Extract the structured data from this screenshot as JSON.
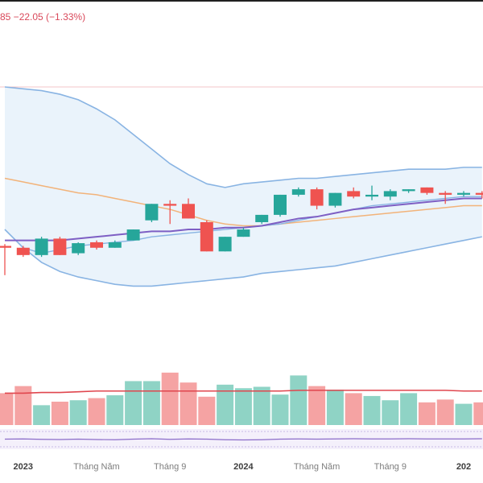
{
  "header": {
    "change_text": "85  −22.05 (−1.33%)"
  },
  "colors": {
    "up": "#26a69a",
    "down": "#ef5350",
    "up_volume": "#8fd3c5",
    "down_volume": "#f5a3a3",
    "band_line": "#89b4e3",
    "band_fill": "#eaf3fb",
    "ma_orange": "#f2b37a",
    "ma_purple": "#7e5fc4",
    "volume_ma": "#e0464e",
    "oscillator": "#8b6cc9",
    "reference_line": "#f3c4c8"
  },
  "chart_data": {
    "type": "candlestick",
    "title": "",
    "xlabel": "",
    "ylabel": "",
    "x_ticks": [
      {
        "label": "2023",
        "index": 1,
        "strong": true
      },
      {
        "label": "Tháng Năm",
        "index": 5,
        "strong": false
      },
      {
        "label": "Tháng 9",
        "index": 9,
        "strong": false
      },
      {
        "label": "2024",
        "index": 13,
        "strong": true
      },
      {
        "label": "Tháng Năm",
        "index": 17,
        "strong": false
      },
      {
        "label": "Tháng 9",
        "index": 21,
        "strong": false
      },
      {
        "label": "202",
        "index": 25,
        "strong": true
      }
    ],
    "price_range": [
      0,
      100
    ],
    "reference_level": 100,
    "candles": [
      {
        "o": 13.0,
        "h": 14.0,
        "l": -3.0,
        "c": 12.0
      },
      {
        "o": 12.0,
        "h": 13.0,
        "l": 7.0,
        "c": 8.0
      },
      {
        "o": 8.0,
        "h": 18.0,
        "l": 7.0,
        "c": 17.0
      },
      {
        "o": 17.0,
        "h": 18.0,
        "l": 8.0,
        "c": 8.0
      },
      {
        "o": 9.0,
        "h": 15.0,
        "l": 8.0,
        "c": 14.5
      },
      {
        "o": 15.0,
        "h": 16.0,
        "l": 11.0,
        "c": 12.0
      },
      {
        "o": 12.0,
        "h": 16.0,
        "l": 12.0,
        "c": 15.0
      },
      {
        "o": 16.0,
        "h": 22.0,
        "l": 16.0,
        "c": 22.0
      },
      {
        "o": 27.0,
        "h": 36.0,
        "l": 26.0,
        "c": 36.0
      },
      {
        "o": 36.0,
        "h": 38.0,
        "l": 25.0,
        "c": 35.0
      },
      {
        "o": 36.0,
        "h": 39.0,
        "l": 28.0,
        "c": 28.0
      },
      {
        "o": 26.0,
        "h": 27.0,
        "l": 10.0,
        "c": 10.0
      },
      {
        "o": 10.0,
        "h": 18.0,
        "l": 10.0,
        "c": 18.0
      },
      {
        "o": 18.0,
        "h": 23.0,
        "l": 18.0,
        "c": 22.0
      },
      {
        "o": 26.0,
        "h": 30.0,
        "l": 25.0,
        "c": 30.0
      },
      {
        "o": 30.0,
        "h": 41.0,
        "l": 29.0,
        "c": 41.0
      },
      {
        "o": 41.0,
        "h": 45.0,
        "l": 40.0,
        "c": 44.0
      },
      {
        "o": 44.0,
        "h": 45.0,
        "l": 33.0,
        "c": 35.0
      },
      {
        "o": 35.0,
        "h": 42.0,
        "l": 34.0,
        "c": 42.0
      },
      {
        "o": 43.0,
        "h": 45.0,
        "l": 39.0,
        "c": 40.0
      },
      {
        "o": 40.0,
        "h": 46.0,
        "l": 38.0,
        "c": 41.0
      },
      {
        "o": 40.0,
        "h": 44.0,
        "l": 38.0,
        "c": 43.0
      },
      {
        "o": 43.0,
        "h": 44.0,
        "l": 42.0,
        "c": 44.0
      },
      {
        "o": 45.0,
        "h": 45.0,
        "l": 41.0,
        "c": 42.0
      },
      {
        "o": 42.0,
        "h": 43.0,
        "l": 36.0,
        "c": 41.0
      },
      {
        "o": 41.0,
        "h": 43.0,
        "l": 40.0,
        "c": 42.0
      },
      {
        "o": 42.0,
        "h": 43.0,
        "l": 39.0,
        "c": 41.0
      }
    ],
    "bollinger_upper": [
      100,
      99,
      98,
      96,
      93,
      88,
      82,
      74,
      66,
      58,
      52,
      47,
      45,
      47,
      48,
      49,
      50,
      50,
      51,
      52,
      53,
      54,
      55,
      55,
      55,
      56,
      56
    ],
    "bollinger_lower": [
      22,
      12,
      4,
      -1,
      -4,
      -6,
      -8,
      -9,
      -9,
      -8,
      -7,
      -6,
      -5,
      -4,
      -2,
      -1,
      0,
      1,
      2,
      4,
      6,
      8,
      10,
      12,
      14,
      16,
      18
    ],
    "ma_long": [
      50,
      48,
      46,
      44,
      42,
      41,
      39,
      37,
      35,
      33,
      30,
      27,
      25,
      24,
      24,
      25,
      26,
      27,
      28,
      29,
      30,
      31,
      32,
      33,
      34,
      35,
      35
    ],
    "ma_short": [
      22,
      12,
      9,
      11,
      13,
      14,
      15,
      16,
      18,
      19,
      20,
      21,
      22,
      23,
      24,
      25,
      27,
      29,
      31,
      33,
      35,
      36,
      37,
      38,
      39,
      40,
      40
    ],
    "ma_mid": [
      16,
      16,
      16,
      16,
      17,
      18,
      19,
      20,
      21,
      21,
      22,
      22,
      23,
      23,
      24,
      26,
      28,
      29,
      31,
      33,
      34,
      35,
      36,
      37,
      38,
      39,
      39
    ],
    "volume_range": [
      0,
      100
    ],
    "volume": [
      45,
      55,
      28,
      33,
      35,
      38,
      42,
      62,
      62,
      74,
      60,
      40,
      57,
      52,
      54,
      43,
      70,
      55,
      50,
      45,
      41,
      35,
      45,
      32,
      36,
      30,
      32
    ],
    "volume_ma": [
      45,
      45,
      46,
      46,
      47,
      48,
      48,
      48,
      48,
      48,
      48,
      48,
      48,
      48,
      48,
      48,
      49,
      49,
      49,
      49,
      49,
      49,
      49,
      49,
      49,
      48,
      48
    ],
    "oscillator": [
      50,
      51,
      49,
      48,
      50,
      48,
      47,
      50,
      52,
      49,
      51,
      50,
      47,
      46,
      47,
      50,
      51,
      50,
      51,
      52,
      51,
      51,
      52,
      51,
      51,
      51,
      52
    ]
  }
}
